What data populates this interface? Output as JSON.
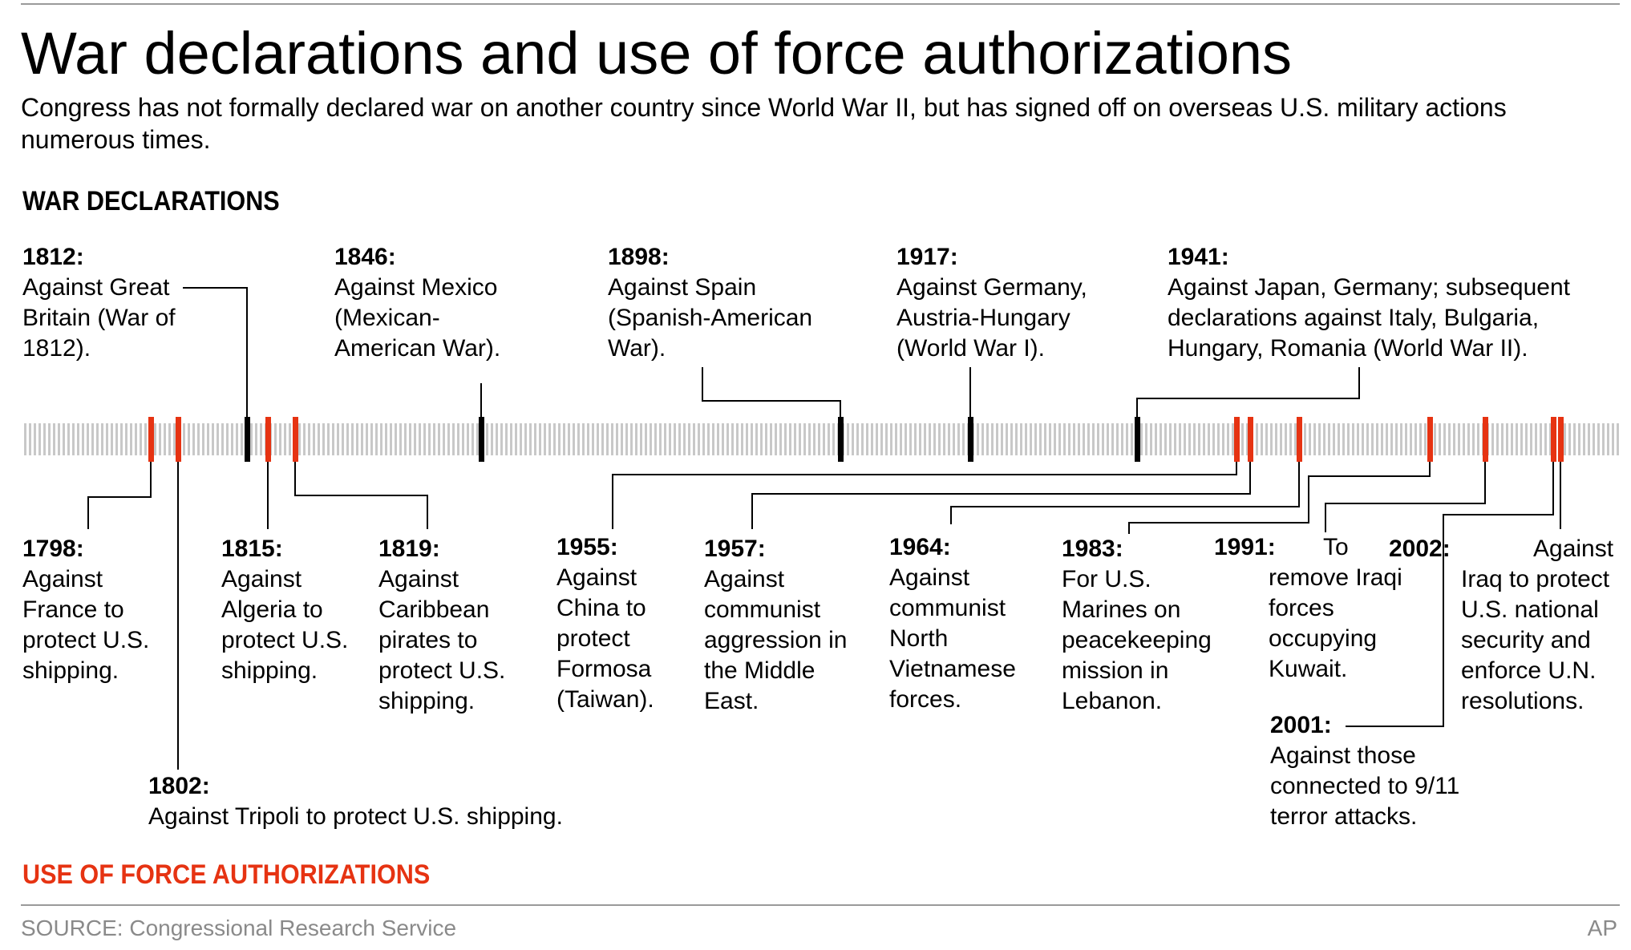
{
  "title": "War declarations and use of force authorizations",
  "subtitle": "Congress has not formally declared war on another country since World War II, but has signed off on overseas U.S. military actions numerous times.",
  "sections": {
    "war_declarations": "WAR DECLARATIONS",
    "use_of_force": "USE OF FORCE AUTHORIZATIONS"
  },
  "colors": {
    "war": "#000000",
    "force": "#e63312",
    "timeline_track": "#c8c8c8",
    "rule": "#9a9a9a",
    "footer_text": "#8a8a8a"
  },
  "war_declarations": [
    {
      "year": "1812:",
      "text": "Against Great Britain (War of 1812)."
    },
    {
      "year": "1846:",
      "text": "Against Mexico (Mexican-American War)."
    },
    {
      "year": "1898:",
      "text": "Against Spain (Spanish-American War)."
    },
    {
      "year": "1917:",
      "text": "Against Germany, Austria-Hungary (World War I)."
    },
    {
      "year": "1941:",
      "text": "Against Japan, Germany; subsequent declarations against Italy, Bulgaria, Hungary, Romania (World War II)."
    }
  ],
  "use_of_force": [
    {
      "year": "1798:",
      "text": "Against France to protect U.S. shipping."
    },
    {
      "year": "1802:",
      "text": "Against Tripoli to protect U.S. shipping."
    },
    {
      "year": "1815:",
      "text": "Against Algeria to protect U.S. shipping."
    },
    {
      "year": "1819:",
      "text": "Against Caribbean pirates to protect U.S. shipping."
    },
    {
      "year": "1955:",
      "text": "Against China to protect Formosa (Taiwan)."
    },
    {
      "year": "1957:",
      "text": "Against communist aggression in the Middle East."
    },
    {
      "year": "1964:",
      "text": "Against communist North Vietnamese forces."
    },
    {
      "year": "1983:",
      "text": "For U.S. Marines on peacekeeping mission in Lebanon."
    },
    {
      "year": "1991:",
      "text": "To remove Iraqi forces occupying Kuwait."
    },
    {
      "year": "2001:",
      "text": "Against those connected to 9/11 terror attacks."
    },
    {
      "year": "2002:",
      "text": "Against Iraq to protect U.S. national security and enforce U.N. resolutions."
    }
  ],
  "footer": {
    "source": "SOURCE: Congressional Research Service",
    "credit": "AP"
  }
}
